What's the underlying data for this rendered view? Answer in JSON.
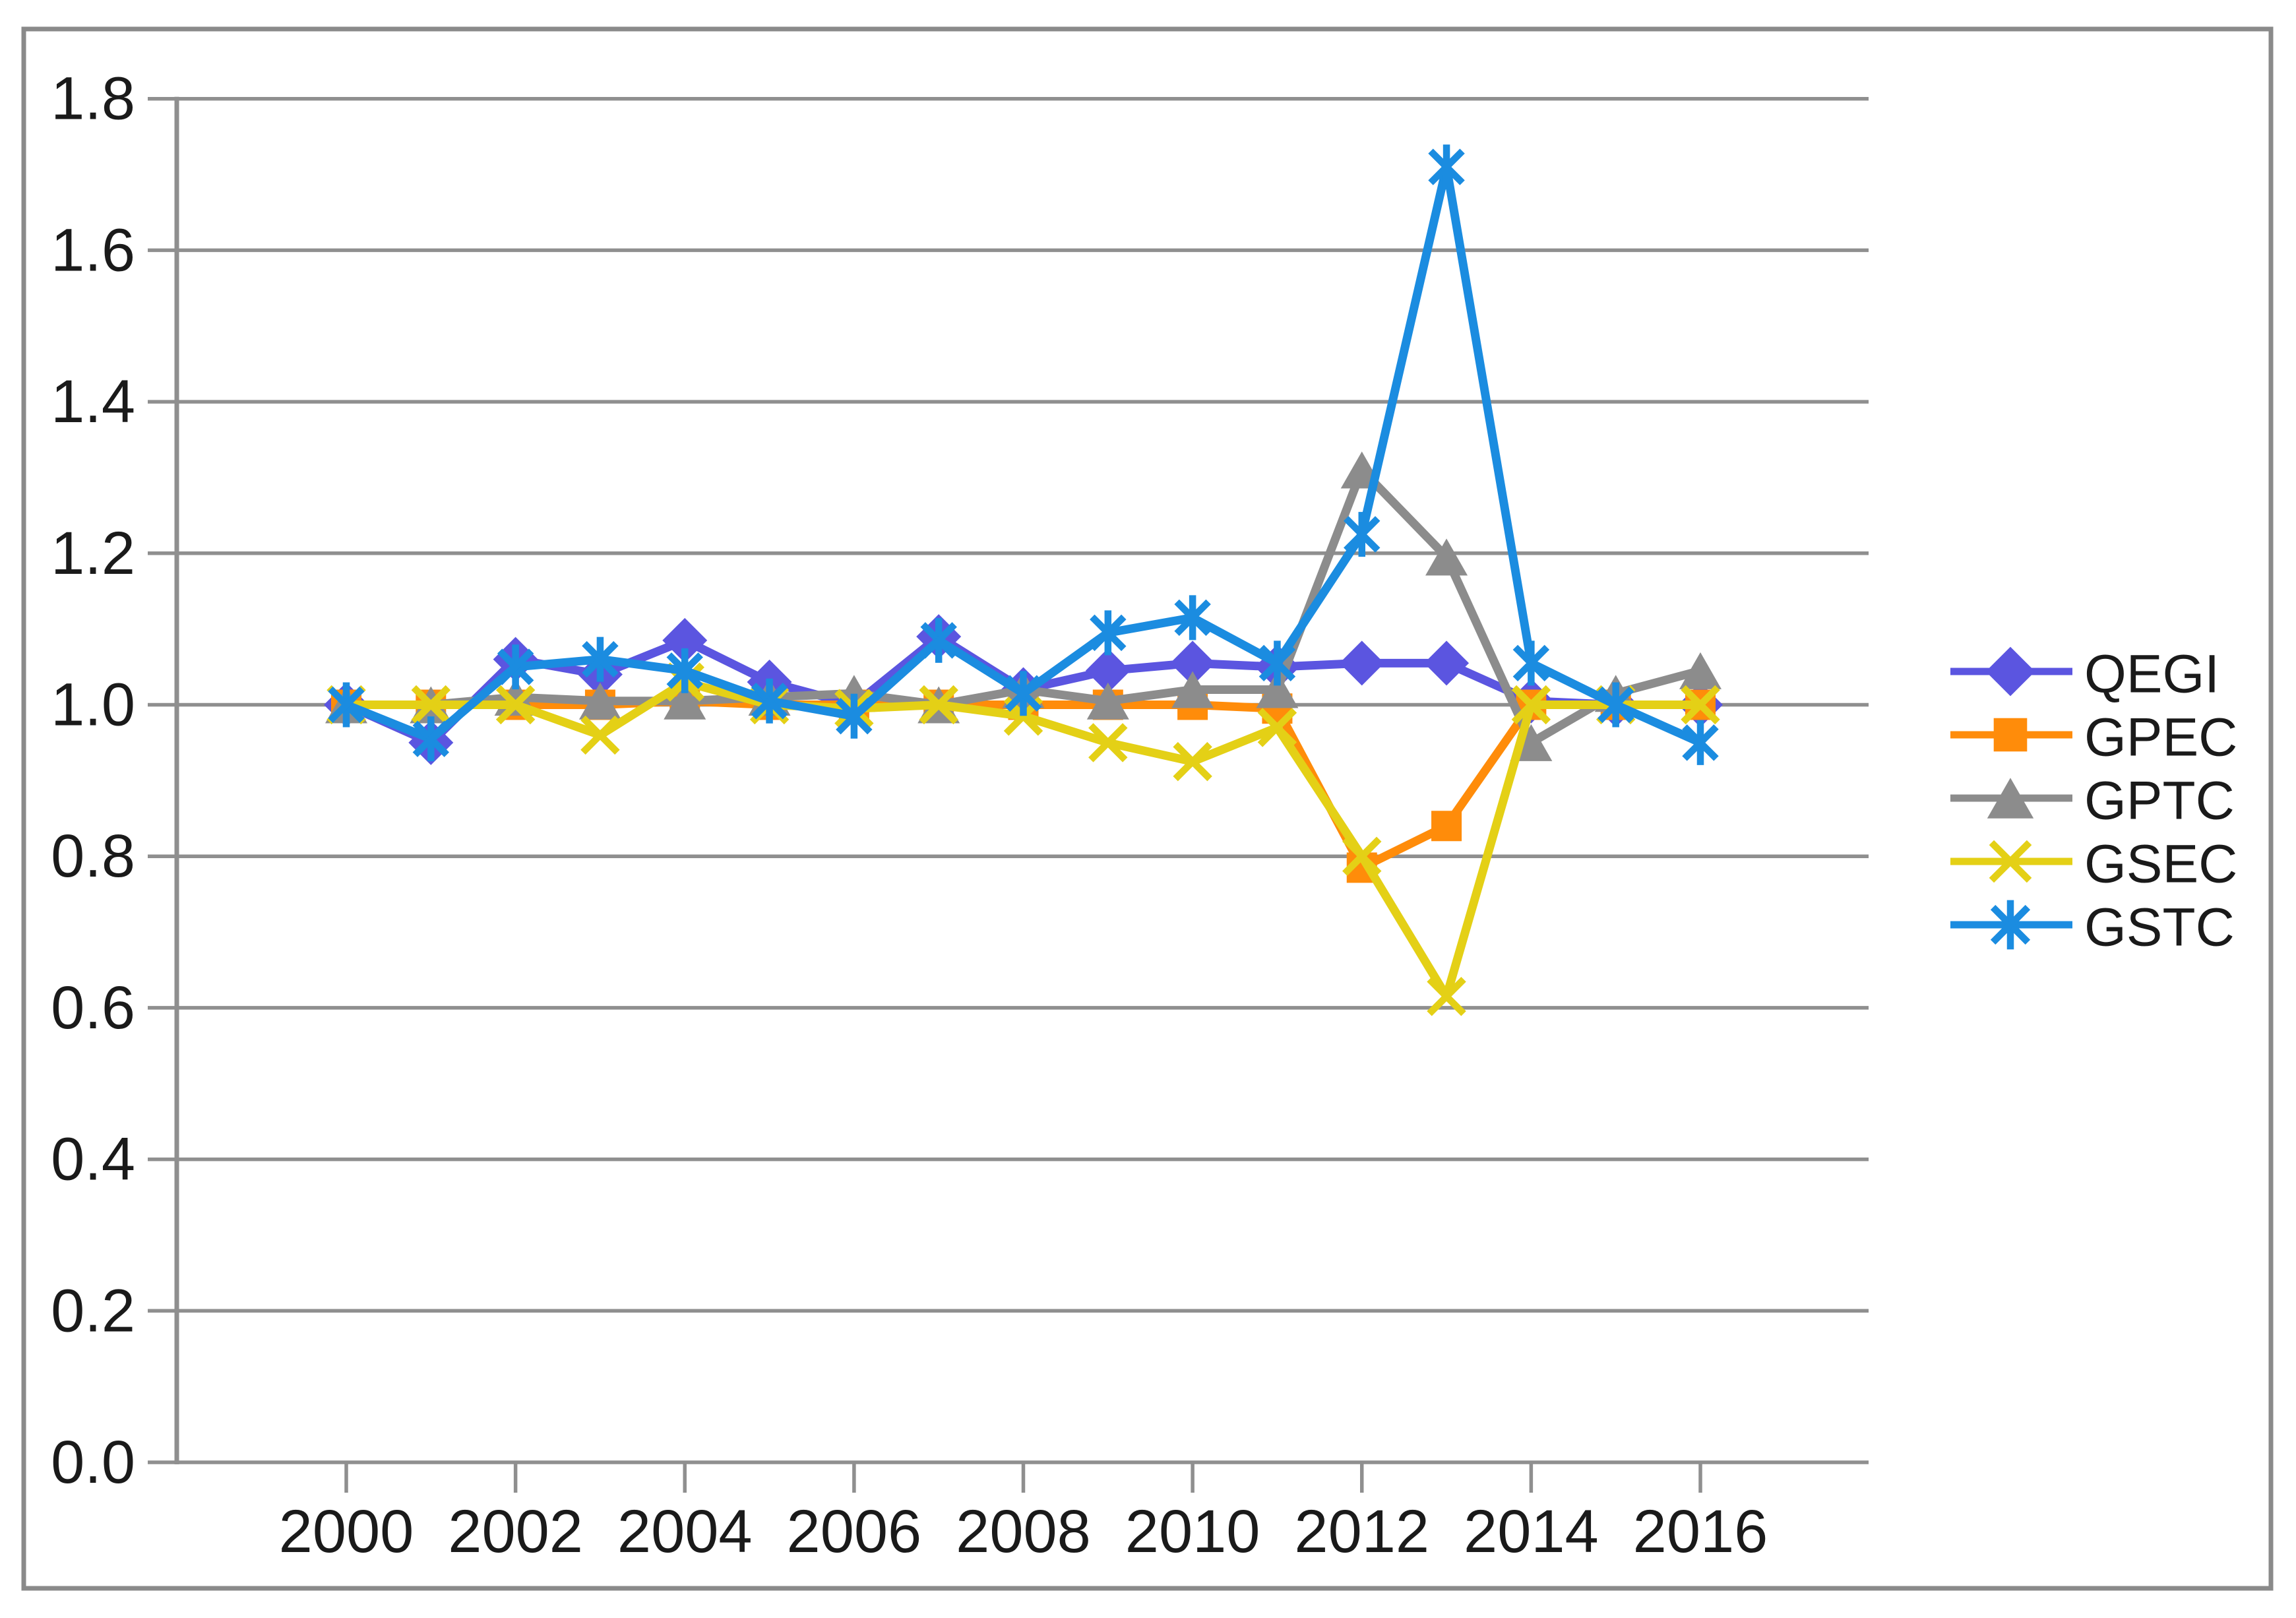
{
  "figure": {
    "background": "#ffffff",
    "border_color": "#8a8a8a"
  },
  "chart_data": {
    "type": "line",
    "title": "",
    "xlabel": "",
    "ylabel": "",
    "x": [
      2000,
      2001,
      2002,
      2003,
      2004,
      2005,
      2006,
      2007,
      2008,
      2009,
      2010,
      2011,
      2012,
      2013,
      2014,
      2015,
      2016
    ],
    "series": [
      {
        "name": "QEGI",
        "color": "#5b55e0",
        "marker": "diamond",
        "values": [
          1.0,
          0.95,
          1.06,
          1.04,
          1.085,
          1.03,
          1.0,
          1.09,
          1.02,
          1.045,
          1.055,
          1.05,
          1.055,
          1.055,
          1.005,
          1.0,
          1.0
        ]
      },
      {
        "name": "GPEC",
        "color": "#ff8c0a",
        "marker": "square",
        "values": [
          1.0,
          1.0,
          1.0,
          1.0,
          1.005,
          1.0,
          1.0,
          1.0,
          1.0,
          1.0,
          1.0,
          0.995,
          0.785,
          0.84,
          1.0,
          1.0,
          1.0
        ]
      },
      {
        "name": "GPTC",
        "color": "#8c8c8c",
        "marker": "triangle",
        "values": [
          1.0,
          1.0,
          1.01,
          1.005,
          1.005,
          1.01,
          1.015,
          1.0,
          1.02,
          1.005,
          1.02,
          1.02,
          1.31,
          1.195,
          0.95,
          1.015,
          1.045
        ]
      },
      {
        "name": "GSEC",
        "color": "#e4d016",
        "marker": "x",
        "values": [
          1.0,
          1.0,
          1.0,
          0.96,
          1.03,
          1.0,
          0.995,
          1.0,
          0.985,
          0.95,
          0.925,
          0.97,
          0.8,
          0.615,
          1.0,
          1.0,
          1.0
        ]
      },
      {
        "name": "GSTC",
        "color": "#1b8ce0",
        "marker": "asterisk",
        "values": [
          1.0,
          0.955,
          1.05,
          1.06,
          1.045,
          1.005,
          0.985,
          1.085,
          1.015,
          1.095,
          1.115,
          1.055,
          1.225,
          1.71,
          1.055,
          1.0,
          0.95
        ]
      }
    ],
    "ylim": [
      0.0,
      1.8
    ],
    "ytick_labels": [
      "0.0",
      "0.2",
      "0.4",
      "0.6",
      "0.8",
      "1.0",
      "1.2",
      "1.4",
      "1.6",
      "1.8"
    ],
    "xtick_labels": [
      "2000",
      "2002",
      "2004",
      "2006",
      "2008",
      "2010",
      "2012",
      "2014",
      "2016"
    ],
    "grid": true,
    "legend_position": "right",
    "axis_color": "#8f8f8f",
    "text_color": "#1a1a1a"
  }
}
